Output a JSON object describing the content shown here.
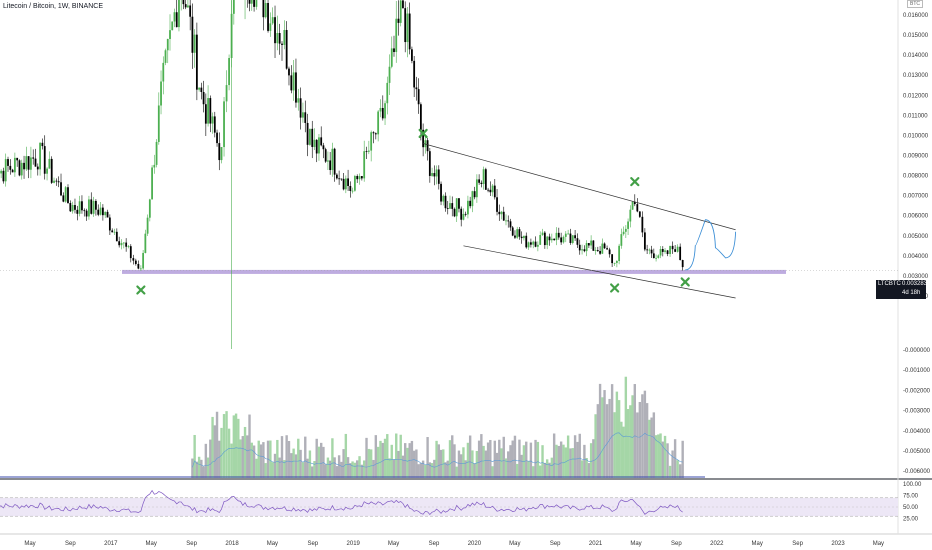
{
  "header": {
    "title": "Litecoin / Bitcoin, 1W, BINANCE",
    "currency": "BTC"
  },
  "price_tag": {
    "symbol": "LTCBTC",
    "value": "0.003283",
    "countdown": "4d 18h"
  },
  "colors": {
    "up": "#4caf50",
    "down": "#000000",
    "support": "#b39ddb",
    "rsi": "#7e57c2",
    "projection": "#3d8fd6",
    "marker": "#43a047",
    "vol_up": "#a5d6a7",
    "vol_down": "#b0b0b8"
  },
  "chart_data": [
    {
      "type": "candlestick",
      "name": "price",
      "x_ticks": [
        "May",
        "Sep",
        "2017",
        "May",
        "Sep",
        "2018",
        "May",
        "Sep",
        "2019",
        "May",
        "Sep",
        "2020",
        "May",
        "Sep",
        "2021",
        "May",
        "Sep",
        "2022",
        "May",
        "Sep",
        "2023",
        "May"
      ],
      "y_ticks": [
        "0.016000",
        "0.015000",
        "0.014000",
        "0.013000",
        "0.012000",
        "0.011000",
        "0.010000",
        "0.009000",
        "0.008000",
        "0.007000",
        "0.006000",
        "0.005000",
        "0.004000",
        "0.003000",
        "0.002000"
      ],
      "ylim": [
        0.0015,
        0.017
      ],
      "support_zone": [
        0.0031,
        0.0033
      ],
      "channel_upper": [
        {
          "x": "2019-08",
          "y": 0.0096
        },
        {
          "x": "2022-03",
          "y": 0.0053
        }
      ],
      "channel_lower": [
        {
          "x": "2019-12",
          "y": 0.0045
        },
        {
          "x": "2022-03",
          "y": 0.0019
        }
      ],
      "projection": [
        {
          "x": "2021-10",
          "y": 0.0033
        },
        {
          "x": "2021-11",
          "y": 0.0045
        },
        {
          "x": "2021-12",
          "y": 0.0058
        },
        {
          "x": "2022-01",
          "y": 0.0044
        },
        {
          "x": "2022-02",
          "y": 0.0039
        },
        {
          "x": "2022-03",
          "y": 0.0052
        }
      ],
      "markers": [
        {
          "x": "2017-04",
          "y": 0.0023
        },
        {
          "x": "2019-08",
          "y": 0.0101
        },
        {
          "x": "2021-03",
          "y": 0.0024
        },
        {
          "x": "2021-05",
          "y": 0.0077
        },
        {
          "x": "2021-10",
          "y": 0.0027
        }
      ],
      "anchors": [
        [
          "2016-01",
          0.008
        ],
        [
          "2016-06",
          0.009
        ],
        [
          "2016-09",
          0.0065
        ],
        [
          "2016-12",
          0.0063
        ],
        [
          "2017-03",
          0.004
        ],
        [
          "2017-04",
          0.0032
        ],
        [
          "2017-06",
          0.012
        ],
        [
          "2017-08",
          0.018
        ],
        [
          "2017-10",
          0.012
        ],
        [
          "2017-12",
          0.009
        ],
        [
          "2018-01",
          0.017
        ],
        [
          "2018-03",
          0.018
        ],
        [
          "2018-06",
          0.015
        ],
        [
          "2018-09",
          0.0095
        ],
        [
          "2018-11",
          0.0088
        ],
        [
          "2019-01",
          0.0072
        ],
        [
          "2019-04",
          0.011
        ],
        [
          "2019-06",
          0.0165
        ],
        [
          "2019-08",
          0.0095
        ],
        [
          "2019-10",
          0.0068
        ],
        [
          "2019-12",
          0.0062
        ],
        [
          "2020-02",
          0.0079
        ],
        [
          "2020-04",
          0.006
        ],
        [
          "2020-06",
          0.0047
        ],
        [
          "2020-09",
          0.005
        ],
        [
          "2020-12",
          0.0045
        ],
        [
          "2021-02",
          0.0043
        ],
        [
          "2021-03",
          0.0036
        ],
        [
          "2021-05",
          0.007
        ],
        [
          "2021-06",
          0.0043
        ],
        [
          "2021-08",
          0.004
        ],
        [
          "2021-09",
          0.0045
        ],
        [
          "2021-10",
          0.00328
        ]
      ]
    },
    {
      "type": "bar",
      "name": "volume",
      "y_ticks": [
        "-0.000000",
        "-0.001000",
        "-0.002000",
        "-0.003000",
        "-0.004000",
        "-0.005000",
        "-0.006000"
      ]
    },
    {
      "type": "line",
      "name": "rsi",
      "y_ticks": [
        "100.00",
        "75.00",
        "50.00",
        "25.00"
      ],
      "levels": [
        70,
        30
      ],
      "ylim": [
        0,
        100
      ]
    }
  ]
}
